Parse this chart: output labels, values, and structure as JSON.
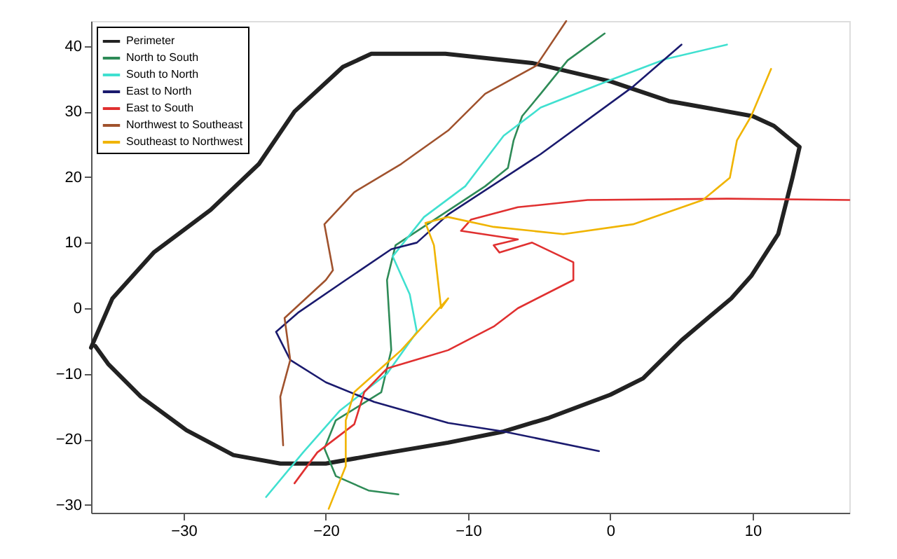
{
  "chart_data": {
    "type": "line",
    "xlim": [
      -36.5,
      16.8
    ],
    "ylim": [
      -31.2,
      43.8
    ],
    "xticks": [
      -30,
      -20,
      -10,
      0,
      10
    ],
    "yticks": [
      -30,
      -20,
      -10,
      0,
      10,
      20,
      30,
      40
    ],
    "grid": false,
    "legend": "top left",
    "marker": "none",
    "line_style": "solid",
    "series": [
      {
        "name": "Perimeter",
        "color": "#222222",
        "x": [
          -36.5,
          -35,
          -32.1,
          -28.1,
          -24.7,
          -22.2,
          -18.8,
          -16.8,
          -11.6,
          -5.5,
          0,
          4.1,
          10,
          11.5,
          13.3,
          12.8,
          11.8,
          9.9,
          8.5,
          5,
          2.3,
          0,
          -4.3,
          -7.5,
          -11.4,
          -16.6,
          -20,
          -23.2,
          -26.5,
          -29.8,
          -33,
          -35.3,
          -36.2
        ],
        "values": [
          -6,
          1.5,
          8.5,
          15,
          22,
          30,
          36.8,
          38.8,
          38.8,
          37.4,
          34.6,
          31.6,
          29.3,
          27.8,
          24.6,
          19.9,
          11.3,
          4.9,
          1.5,
          -4.9,
          -10.7,
          -13.2,
          -16.7,
          -18.8,
          -20.5,
          -22.4,
          -23.7,
          -23.7,
          -22.4,
          -18.6,
          -13.5,
          -8.5,
          -5.8
        ]
      },
      {
        "name": "North to South",
        "color": "#2e8b57",
        "x": [
          -0.4,
          -3,
          -4.9,
          -6.2,
          -6.8,
          -7.2,
          -8.8,
          -15.1,
          -15.7,
          -15.4,
          -16.1,
          -19.3,
          -20.1,
          -19.3,
          -17,
          -14.9
        ],
        "values": [
          41.9,
          37.8,
          32.7,
          29.3,
          25.6,
          21.4,
          18.6,
          9.6,
          4.3,
          -6.4,
          -12.8,
          -17.1,
          -21.4,
          -25.6,
          -27.8,
          -28.4
        ]
      },
      {
        "name": "South to North",
        "color": "#40e0d0",
        "x": [
          -24.2,
          -21.6,
          -19,
          -15.7,
          -13.6,
          -14.1,
          -15.3,
          -13.1,
          -10.2,
          -7.5,
          -4.9,
          0,
          3.9,
          8.2
        ],
        "values": [
          -28.8,
          -22,
          -15.6,
          -10,
          -3.6,
          2.1,
          7.9,
          13.9,
          18.6,
          26.3,
          30.6,
          34.8,
          38,
          40.2
        ]
      },
      {
        "name": "East to North",
        "color": "#1a1a6e",
        "x": [
          -0.8,
          -7.5,
          -11.4,
          -16.6,
          -20,
          -22.5,
          -23.5,
          -21.9,
          -18.6,
          -15.4,
          -13.6,
          -11.4,
          -4.9,
          1.6,
          5
        ],
        "values": [
          -21.8,
          -18.8,
          -17.5,
          -14.3,
          -11.3,
          -7.9,
          -3.6,
          -0.6,
          4.3,
          9,
          10,
          14.3,
          23.5,
          33.8,
          40.2
        ]
      },
      {
        "name": "East to South",
        "color": "#e03030",
        "x": [
          16.8,
          8.2,
          -1.6,
          -6.5,
          -9.8,
          -10.5,
          -6.5,
          -8.2,
          -7.8,
          -5.5,
          -2.6,
          -2.6,
          -6.5,
          -8.2,
          -11.4,
          -15.7,
          -17.3,
          -18,
          -20.6,
          -22.2
        ],
        "values": [
          16.5,
          16.7,
          16.5,
          15.4,
          13.5,
          11.8,
          10.5,
          9.6,
          8.5,
          10,
          7,
          4.3,
          0,
          -2.8,
          -6.4,
          -9.2,
          -12.8,
          -17.7,
          -22,
          -26.7
        ]
      },
      {
        "name": "Northwest to Southeast",
        "color": "#a0522d",
        "x": [
          -23,
          -23.2,
          -22.5,
          -22.9,
          -20,
          -19.5,
          -20.1,
          -18,
          -14.7,
          -11.4,
          -8.8,
          -5.2,
          -3.1
        ],
        "values": [
          -20.9,
          -13.5,
          -7.9,
          -1.5,
          4.3,
          5.8,
          12.8,
          17.7,
          22,
          27.1,
          32.7,
          37,
          43.8
        ]
      },
      {
        "name": "Southeast to Northwest",
        "color": "#f0b400",
        "x": [
          11.3,
          9.9,
          8.9,
          8.4,
          6.5,
          1.6,
          -3.3,
          -8.2,
          -11.4,
          -13,
          -12.4,
          -11.9,
          -11.4,
          -14.7,
          -18,
          -18.6,
          -18.6,
          -19.8
        ],
        "values": [
          36.5,
          29.3,
          25.6,
          19.9,
          16.5,
          12.8,
          11.3,
          12.4,
          13.9,
          13,
          9.6,
          0,
          1.5,
          -6.4,
          -12.8,
          -17.1,
          -24.1,
          -30.6
        ]
      }
    ]
  }
}
